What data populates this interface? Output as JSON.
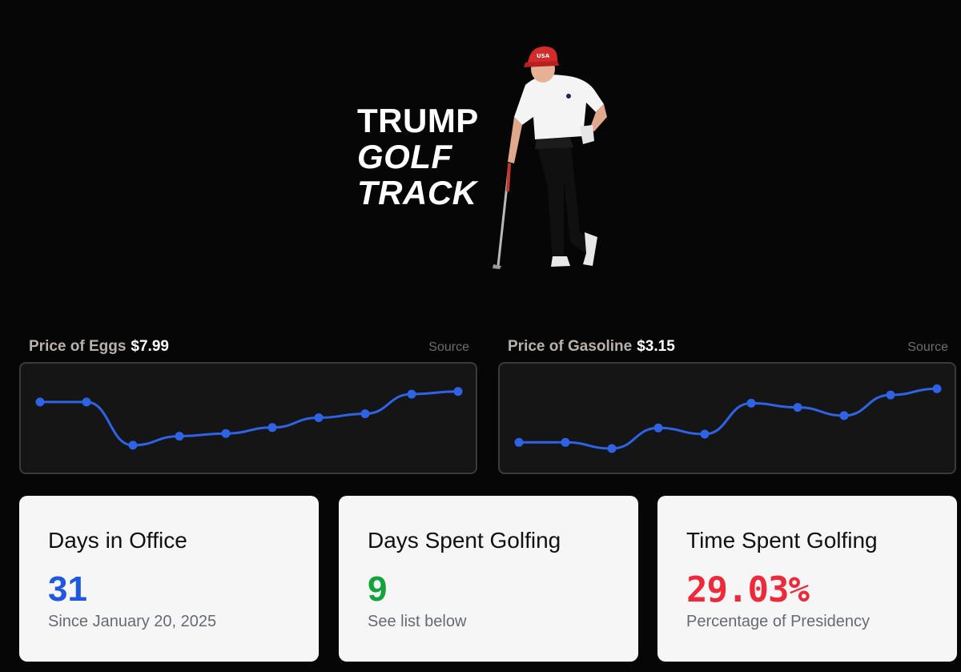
{
  "logo": {
    "line1": "TRUMP",
    "line2": "GOLF",
    "line3": "TRACK"
  },
  "hero_image": {
    "subject": "golfer leaning on club",
    "cap_text": "USA"
  },
  "charts": {
    "eggs": {
      "label": "Price of Eggs",
      "value": "$7.99",
      "source_label": "Source"
    },
    "gas": {
      "label": "Price of Gasoline",
      "value": "$3.15",
      "source_label": "Source"
    }
  },
  "chart_data": [
    {
      "type": "line",
      "series": [
        {
          "values": [
            5.55,
            5.55,
            4.45,
            4.68,
            4.75,
            4.9,
            5.15,
            5.25,
            5.75,
            5.82
          ]
        }
      ],
      "ylim": [
        4.0,
        6.2
      ],
      "color": "#2f63e6"
    },
    {
      "type": "line",
      "series": [
        {
          "values": [
            2.95,
            2.95,
            2.92,
            3.02,
            2.99,
            3.14,
            3.12,
            3.08,
            3.18,
            3.21
          ]
        }
      ],
      "ylim": [
        2.85,
        3.27
      ],
      "color": "#2f63e6"
    }
  ],
  "cards": {
    "days_in_office": {
      "title": "Days in Office",
      "value": "31",
      "subtitle": "Since January 20, 2025",
      "color": "#2057e0"
    },
    "days_golfing": {
      "title": "Days Spent Golfing",
      "value": "9",
      "subtitle": "See list below",
      "color": "#14a23a"
    },
    "time_golfing": {
      "title": "Time Spent Golfing",
      "value": "29.03%",
      "subtitle": "Percentage of Presidency",
      "color": "#ee2a3a"
    }
  }
}
